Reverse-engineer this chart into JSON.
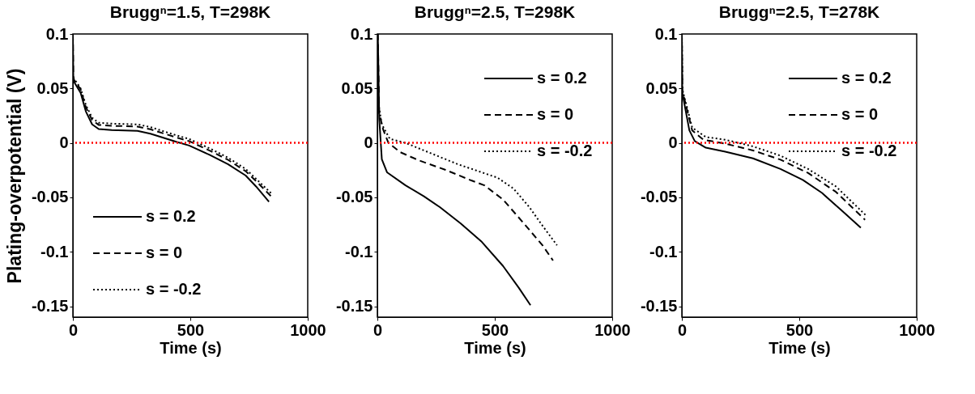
{
  "chart_data": [
    {
      "type": "line",
      "title": "Bruggⁿ=1.5, T=298K",
      "xlabel": "Time (s)",
      "ylabel": "Plating-overpotential (V)",
      "xlim": [
        0,
        1000
      ],
      "xticks": [
        0,
        500,
        1000
      ],
      "ylim": [
        -0.16,
        0.1
      ],
      "yticks": [
        -0.15,
        -0.1,
        -0.05,
        0,
        0.05,
        0.1
      ],
      "legend": "bottom left",
      "ref_lines": [
        {
          "axis": "y",
          "value": 0,
          "color": "#ff0000",
          "line_style": "dotted"
        }
      ],
      "series": [
        {
          "name": "s = 0.2",
          "color": "#000000",
          "line_style": "solid",
          "x": [
            0,
            2,
            33,
            55,
            82,
            110,
            165,
            275,
            330,
            440,
            495,
            582,
            660,
            736,
            780,
            835
          ],
          "values": [
            0.1,
            0.057,
            0.046,
            0.029,
            0.017,
            0.0127,
            0.0117,
            0.011,
            0.0085,
            0.001,
            -0.0024,
            -0.011,
            -0.0195,
            -0.03,
            -0.04,
            -0.054
          ]
        },
        {
          "name": "s = 0",
          "color": "#000000",
          "line_style": "dashed",
          "x": [
            0,
            2,
            33,
            55,
            82,
            110,
            165,
            275,
            330,
            440,
            495,
            582,
            660,
            736,
            780,
            844
          ],
          "values": [
            0.1,
            0.059,
            0.049,
            0.033,
            0.021,
            0.0165,
            0.0157,
            0.015,
            0.0125,
            0.005,
            0.0016,
            -0.007,
            -0.0155,
            -0.026,
            -0.035,
            -0.049
          ]
        },
        {
          "name": "s = -0.2",
          "color": "#000000",
          "line_style": "dotted",
          "x": [
            2,
            33,
            55,
            82,
            110,
            165,
            275,
            330,
            440,
            495,
            582,
            660,
            736,
            780,
            848
          ],
          "values": [
            0.06,
            0.05,
            0.035,
            0.023,
            0.0185,
            0.0177,
            0.017,
            0.0145,
            0.007,
            0.0036,
            -0.005,
            -0.0135,
            -0.024,
            -0.033,
            -0.047
          ]
        }
      ]
    },
    {
      "type": "line",
      "title": "Bruggⁿ=2.5, T=298K",
      "xlabel": "Time (s)",
      "xlim": [
        0,
        1000
      ],
      "xticks": [
        0,
        500,
        1000
      ],
      "ylim": [
        -0.16,
        0.1
      ],
      "yticks": [
        -0.15,
        -0.1,
        -0.05,
        0,
        0.05,
        0.1
      ],
      "legend": "top right",
      "ref_lines": [
        {
          "axis": "y",
          "value": 0,
          "color": "#ff0000",
          "line_style": "dotted"
        }
      ],
      "series": [
        {
          "name": "s = 0.2",
          "color": "#000000",
          "line_style": "solid",
          "x": [
            0,
            2,
            8,
            19,
            41,
            120,
            198,
            266,
            355,
            445,
            535,
            602,
            652
          ],
          "values": [
            0.1,
            0.1,
            0.022,
            -0.015,
            -0.027,
            -0.039,
            -0.049,
            -0.059,
            -0.074,
            -0.091,
            -0.113,
            -0.133,
            -0.149
          ]
        },
        {
          "name": "s = 0",
          "color": "#000000",
          "line_style": "dashed",
          "x": [
            0,
            2,
            8,
            25,
            47,
            98,
            176,
            288,
            400,
            456,
            535,
            624,
            703,
            748
          ],
          "values": [
            0.1,
            0.1,
            0.027,
            0.012,
            0,
            -0.0086,
            -0.016,
            -0.0246,
            -0.0345,
            -0.039,
            -0.052,
            -0.074,
            -0.094,
            -0.108
          ]
        },
        {
          "name": "s = -0.2",
          "color": "#000000",
          "line_style": "dotted",
          "x": [
            0,
            2,
            19,
            53,
            120,
            232,
            344,
            512,
            580,
            647,
            703,
            765
          ],
          "values": [
            0.1,
            0.039,
            0.017,
            0.0037,
            0,
            -0.0099,
            -0.0197,
            -0.032,
            -0.042,
            -0.059,
            -0.076,
            -0.094
          ]
        }
      ]
    },
    {
      "type": "line",
      "title": "Bruggⁿ=2.5, T=278K",
      "xlabel": "Time (s)",
      "xlim": [
        0,
        1000
      ],
      "xticks": [
        0,
        500,
        1000
      ],
      "ylim": [
        -0.16,
        0.1
      ],
      "yticks": [
        -0.15,
        -0.1,
        -0.05,
        0,
        0.05,
        0.1
      ],
      "legend": "top right",
      "ref_lines": [
        {
          "axis": "y",
          "value": 0,
          "color": "#ff0000",
          "line_style": "dotted"
        }
      ],
      "series": [
        {
          "name": "s = 0.2",
          "color": "#000000",
          "line_style": "solid",
          "x": [
            0,
            2,
            32,
            55,
            102,
            185,
            303,
            420,
            515,
            597,
            680,
            762
          ],
          "values": [
            0.1,
            0.046,
            0.0115,
            0.0017,
            -0.0044,
            -0.0081,
            -0.0142,
            -0.024,
            -0.034,
            -0.046,
            -0.062,
            -0.078
          ]
        },
        {
          "name": "s = 0",
          "color": "#000000",
          "line_style": "dashed",
          "x": [
            0,
            2,
            44,
            91,
            185,
            303,
            420,
            538,
            656,
            780
          ],
          "values": [
            0.1,
            0.048,
            0.0115,
            0.003,
            -0.0007,
            -0.0069,
            -0.0154,
            -0.0277,
            -0.045,
            -0.0706
          ]
        },
        {
          "name": "s = -0.2",
          "color": "#000000",
          "line_style": "dotted",
          "x": [
            0,
            2,
            44,
            102,
            185,
            303,
            420,
            538,
            656,
            786
          ],
          "values": [
            0.1,
            0.0495,
            0.014,
            0.0054,
            0.0029,
            -0.0032,
            -0.0118,
            -0.024,
            -0.04,
            -0.067
          ]
        }
      ]
    }
  ]
}
